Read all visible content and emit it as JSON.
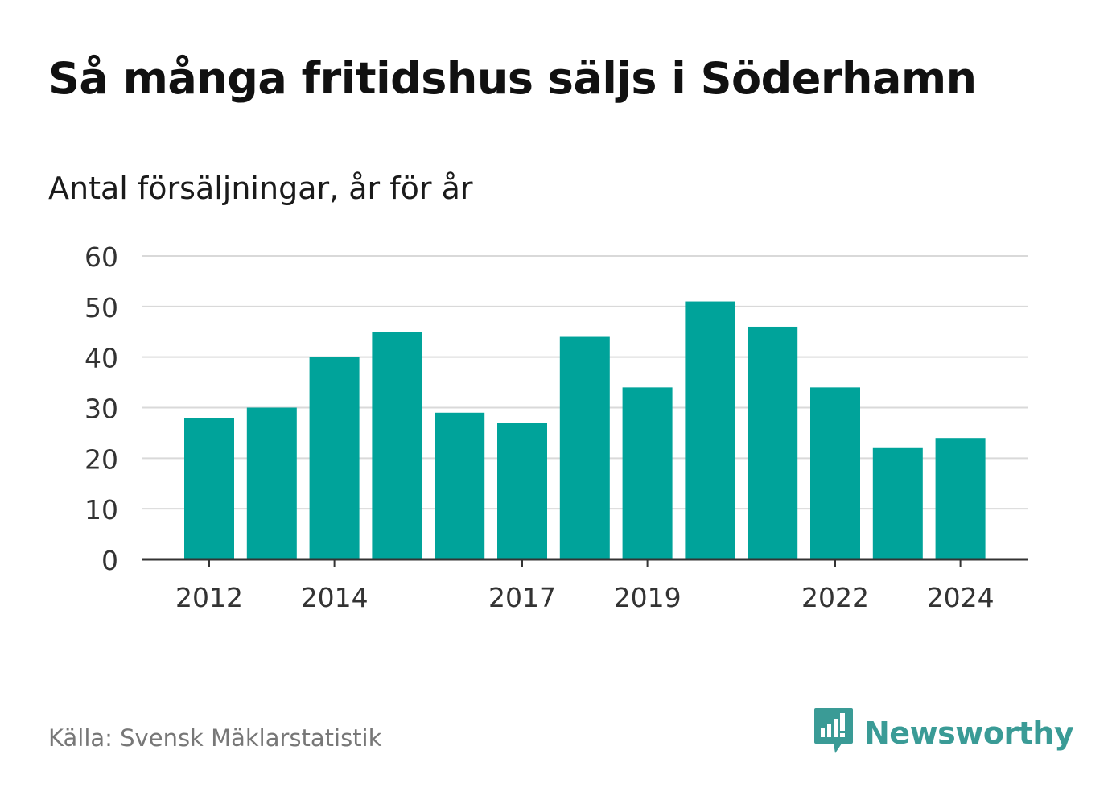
{
  "title": "Så många fritidshus säljs i Söderhamn",
  "subtitle": "Antal försäljningar, år för år",
  "source": "Källa: Svensk Mäklarstatistik",
  "logo": {
    "text": "Newsworthy",
    "icon": "newsworthy-logo-icon",
    "color": "#3a9b96"
  },
  "colors": {
    "bar": "#00a39a",
    "grid": "#d9d9d9",
    "axis": "#333333"
  },
  "chart_data": {
    "type": "bar",
    "categories": [
      "2012",
      "2013",
      "2014",
      "2015",
      "2016",
      "2017",
      "2018",
      "2019",
      "2020",
      "2021",
      "2022",
      "2023",
      "2024"
    ],
    "values": [
      28,
      30,
      40,
      45,
      29,
      27,
      44,
      34,
      51,
      46,
      34,
      22,
      24
    ],
    "x_tick_labels": [
      "2012",
      "2014",
      "2017",
      "2019",
      "2022",
      "2024"
    ],
    "y_ticks": [
      0,
      10,
      20,
      30,
      40,
      50,
      60
    ],
    "ylim": [
      0,
      60
    ],
    "grid": true,
    "xlabel": "",
    "ylabel": ""
  }
}
